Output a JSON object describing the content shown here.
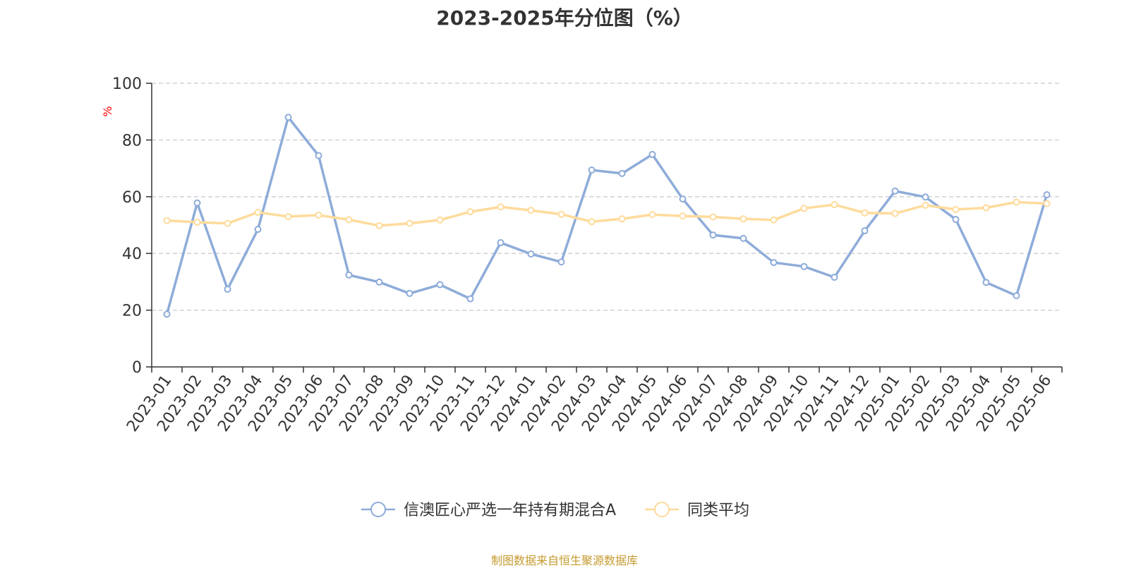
{
  "chart_data": {
    "type": "line",
    "title": "2023-2025年分位图（%）",
    "ylabel": "%",
    "ylim": [
      0,
      100
    ],
    "yticks": [
      0,
      20,
      40,
      60,
      80,
      100
    ],
    "grid": true,
    "legend_position": "bottom",
    "categories": [
      "2023-01",
      "2023-02",
      "2023-03",
      "2023-04",
      "2023-05",
      "2023-06",
      "2023-07",
      "2023-08",
      "2023-09",
      "2023-10",
      "2023-11",
      "2023-12",
      "2024-01",
      "2024-02",
      "2024-03",
      "2024-04",
      "2024-05",
      "2024-06",
      "2024-07",
      "2024-08",
      "2024-09",
      "2024-10",
      "2024-11",
      "2024-12",
      "2025-01",
      "2025-02",
      "2025-03",
      "2025-04",
      "2025-05",
      "2025-06"
    ],
    "series": [
      {
        "name": "信澳匠心严选一年持有期混合A",
        "color": "#8eacd9",
        "values": [
          18.6,
          57.8,
          27.4,
          48.5,
          88.0,
          74.5,
          32.4,
          29.9,
          25.9,
          29.0,
          24.0,
          43.8,
          39.8,
          37.0,
          69.4,
          68.2,
          74.9,
          59.2,
          46.5,
          45.3,
          36.8,
          35.4,
          31.6,
          48.0,
          62.0,
          59.9,
          52.0,
          29.8,
          25.1,
          60.7
        ]
      },
      {
        "name": "同类平均",
        "color": "#fedb9b",
        "values": [
          51.6,
          51.0,
          50.6,
          54.5,
          53.0,
          53.5,
          51.9,
          49.8,
          50.6,
          51.8,
          54.7,
          56.4,
          55.2,
          53.8,
          51.2,
          52.2,
          53.7,
          53.2,
          52.9,
          52.2,
          51.8,
          55.9,
          57.2,
          54.3,
          54.1,
          57.0,
          55.5,
          56.1,
          58.1,
          57.6
        ]
      }
    ],
    "source_note": "制图数据来自恒生聚源数据库"
  }
}
